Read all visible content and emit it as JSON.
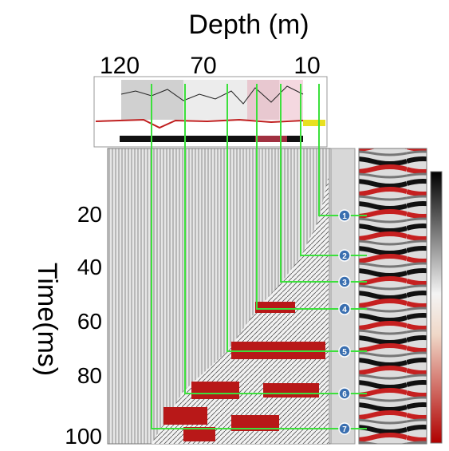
{
  "header": {
    "title": "Depth (m)",
    "depth_labels": [
      "120",
      "70",
      "10"
    ]
  },
  "time_axis": {
    "label": "Time(ms)",
    "ticks": [
      "20",
      "40",
      "60",
      "80",
      "100"
    ]
  },
  "markers": [
    "1",
    "2",
    "3",
    "4",
    "5",
    "6",
    "7"
  ]
}
